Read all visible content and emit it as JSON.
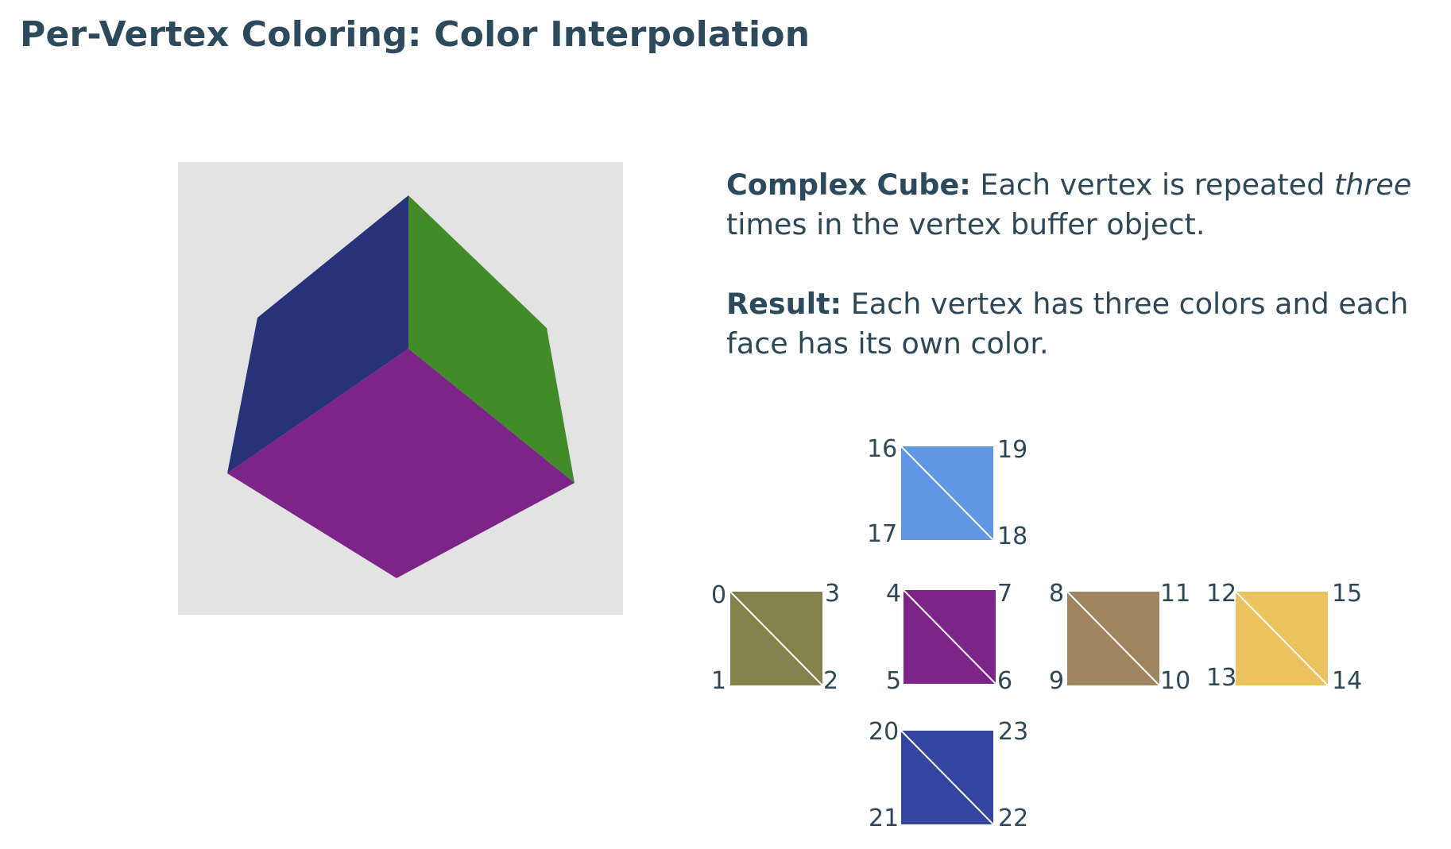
{
  "title": "Per-Vertex Coloring: Color Interpolation",
  "cube_render": {
    "colors": {
      "background": "#e3e3e3",
      "left_face": "#283278",
      "right_face": "#428b29",
      "top_face": "#7c2487"
    }
  },
  "description": {
    "p1_bold": "Complex Cube:",
    "p1_text": " Each vertex is repeated ",
    "p1_italic": "three",
    "p1_end": " times in the vertex buffer object.",
    "p2_bold": "Result:",
    "p2_text": " Each vertex has three colors and each face has its own color."
  },
  "faces": [
    {
      "name": "face-0",
      "color": "#85814c",
      "vertices": [
        "0",
        "3",
        "1",
        "2"
      ]
    },
    {
      "name": "face-1",
      "color": "#7c2487",
      "vertices": [
        "4",
        "7",
        "5",
        "6"
      ]
    },
    {
      "name": "face-2",
      "color": "#9e8560",
      "vertices": [
        "8",
        "11",
        "9",
        "10"
      ]
    },
    {
      "name": "face-3",
      "color": "#ecc25f",
      "vertices": [
        "12",
        "15",
        "13",
        "14"
      ]
    },
    {
      "name": "face-4",
      "color": "#6096e4",
      "vertices": [
        "16",
        "19",
        "17",
        "18"
      ]
    },
    {
      "name": "face-5",
      "color": "#3544a0",
      "vertices": [
        "20",
        "23",
        "21",
        "22"
      ]
    }
  ]
}
